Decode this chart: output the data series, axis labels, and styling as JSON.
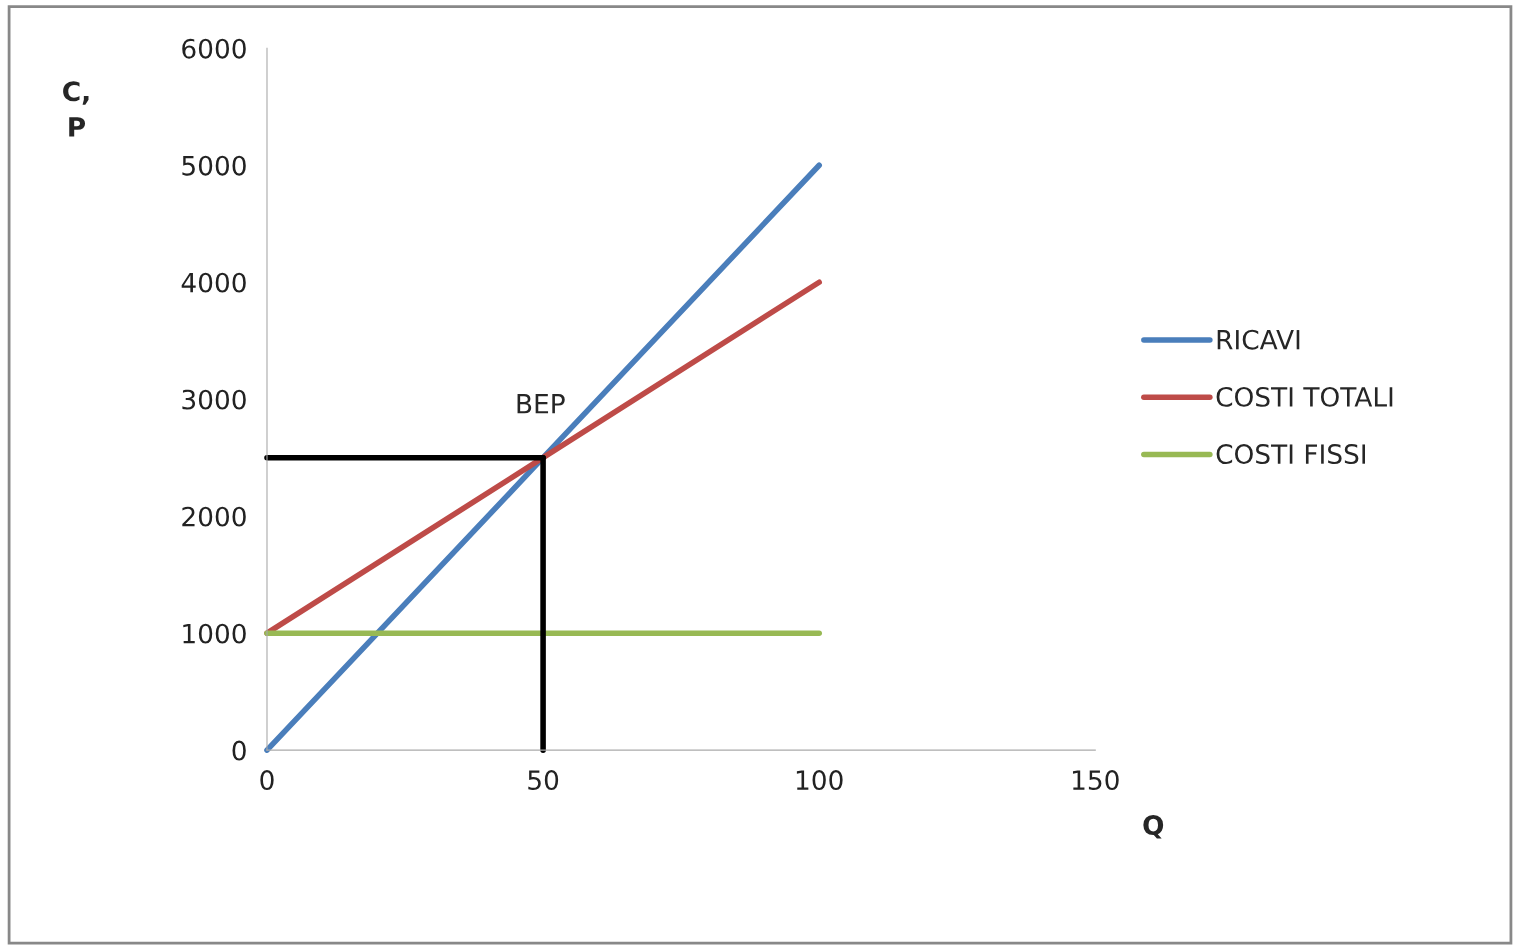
{
  "chart_data": {
    "type": "line",
    "xlabel": "Q",
    "ylabel": "C,\nP",
    "x": [
      0,
      50,
      100
    ],
    "series": [
      {
        "name": "RICAVI",
        "color": "#4a7ebb",
        "values": [
          0,
          2500,
          5000
        ]
      },
      {
        "name": "COSTI TOTALI",
        "color": "#be4b48",
        "values": [
          1000,
          2500,
          4000
        ]
      },
      {
        "name": "COSTI FISSI",
        "color": "#98b954",
        "values": [
          1000,
          1000,
          1000
        ]
      },
      {
        "color": "#000000",
        "values": [
          2500,
          2500,
          null
        ]
      },
      {
        "color": "#000000",
        "x": [
          50,
          50
        ],
        "values": [
          0,
          2500
        ]
      }
    ],
    "annotations": [
      {
        "text": "BEP",
        "x": 50,
        "y": 2500
      }
    ],
    "xlim": [
      0,
      150
    ],
    "xticks": [
      0,
      50,
      100,
      150
    ],
    "ylim": [
      0,
      6000
    ],
    "yticks": [
      0,
      1000,
      2000,
      3000,
      4000,
      5000,
      6000
    ],
    "grid": false,
    "legend": "right",
    "marker": "none",
    "line_style": "solid"
  }
}
